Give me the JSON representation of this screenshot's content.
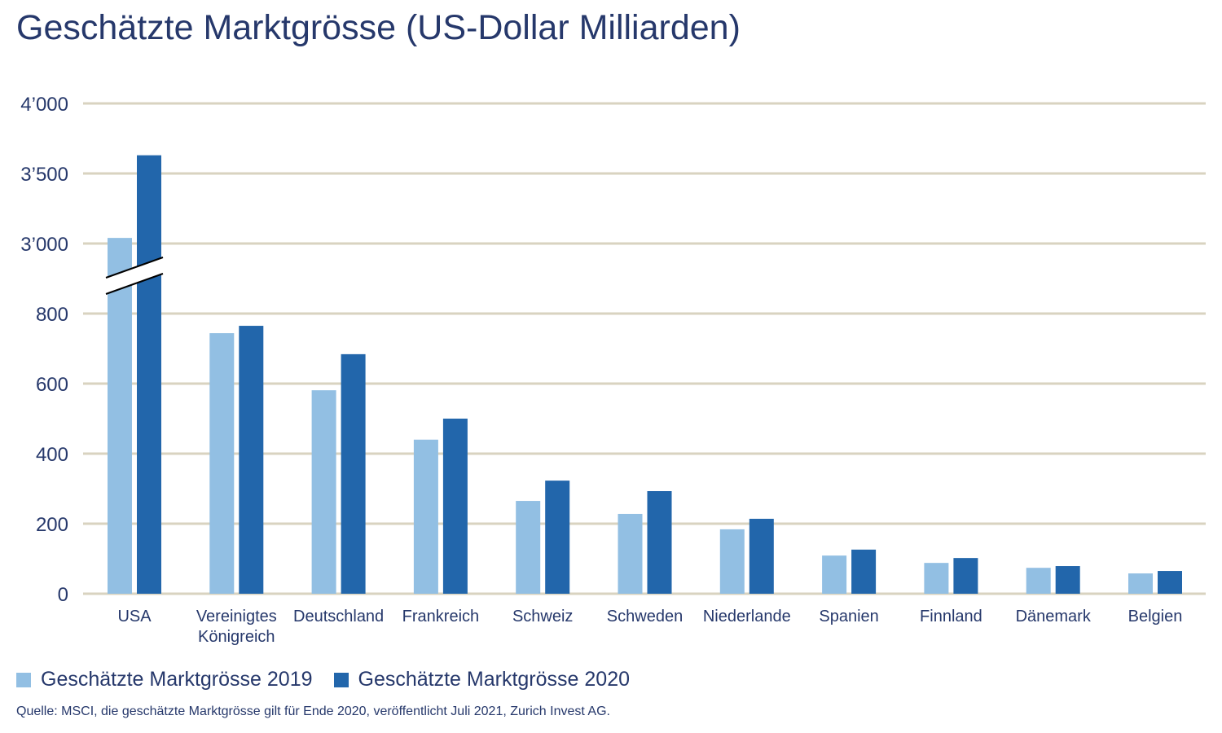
{
  "chart_data": {
    "type": "bar",
    "title": "Geschätzte Marktgrösse (US-Dollar Milliarden)",
    "categories": [
      [
        "USA"
      ],
      [
        "Vereinigtes",
        "Königreich"
      ],
      [
        "Deutschland"
      ],
      [
        "Frankreich"
      ],
      [
        "Schweiz"
      ],
      [
        "Schweden"
      ],
      [
        "Niederlande"
      ],
      [
        "Spanien"
      ],
      [
        "Finnland"
      ],
      [
        "Dänemark"
      ],
      [
        "Belgien"
      ]
    ],
    "series": [
      {
        "name": "Geschätzte Marktgrösse 2019",
        "color": "#92bfe3",
        "values": [
          3040,
          744,
          581,
          440,
          265,
          228,
          184,
          109,
          88,
          74,
          58
        ]
      },
      {
        "name": "Geschätzte Marktgrösse 2020",
        "color": "#2266ab",
        "values": [
          3630,
          765,
          684,
          500,
          323,
          293,
          214,
          126,
          102,
          79,
          65
        ]
      }
    ],
    "yticks": [
      0,
      200,
      400,
      600,
      800,
      3000,
      3500,
      4000
    ],
    "ytick_labels": [
      "0",
      "200",
      "400",
      "600",
      "800",
      "3’000",
      "3’500",
      "4’000"
    ],
    "axis_break": [
      800,
      3000
    ],
    "ylim": [
      0,
      4000
    ],
    "grid": true,
    "grid_color": "#d9d3c0",
    "legend_position": "bottom-left",
    "source": "Quelle: MSCI, die geschätzte Marktgrösse gilt für Ende 2020, veröffentlicht Juli 2021, Zurich Invest AG."
  }
}
